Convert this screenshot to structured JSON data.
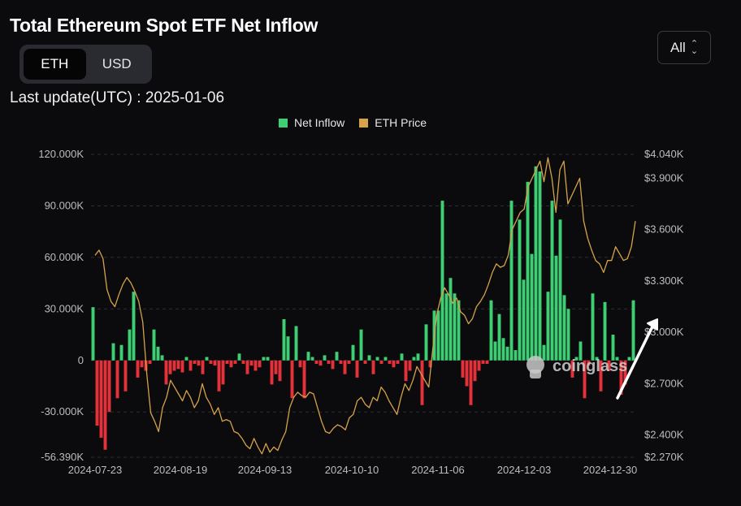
{
  "header": {
    "title": "Total Ethereum Spot ETF Net Inflow",
    "toggle": {
      "options": [
        "ETH",
        "USD"
      ],
      "selected": "ETH"
    },
    "range": {
      "value": "All",
      "icon": "chevron-updown-icon"
    },
    "last_update": "Last update(UTC) : 2025-01-06"
  },
  "watermark": {
    "text": "coinglass",
    "icon": "coinglass-logo-icon"
  },
  "colors": {
    "positive": "#3ecf74",
    "negative": "#e5323a",
    "price": "#d6a24a",
    "background": "#0b0b0d"
  },
  "chart_data": {
    "type": "bar",
    "legend": [
      {
        "name": "Net Inflow",
        "color": "#3ecf74"
      },
      {
        "name": "ETH Price",
        "color": "#d6a24a"
      }
    ],
    "legend_position": "top-center",
    "x_tick_labels": [
      "2024-07-23",
      "2024-08-19",
      "2024-09-13",
      "2024-10-10",
      "2024-11-06",
      "2024-12-03",
      "2024-12-30"
    ],
    "y_left": {
      "ticks": [
        {
          "v": 120000,
          "label": "120.000K"
        },
        {
          "v": 90000,
          "label": "90.000K"
        },
        {
          "v": 60000,
          "label": "60.000K"
        },
        {
          "v": 30000,
          "label": "30.000K"
        },
        {
          "v": 0,
          "label": "0"
        },
        {
          "v": -30000,
          "label": "-30.000K"
        },
        {
          "v": -56390,
          "label": "-56.390K"
        }
      ],
      "range": [
        -56390,
        120000
      ]
    },
    "y_right": {
      "ticks": [
        {
          "v": 4040,
          "label": "$4.040K"
        },
        {
          "v": 3900,
          "label": "$3.900K"
        },
        {
          "v": 3600,
          "label": "$3.600K"
        },
        {
          "v": 3300,
          "label": "$3.300K"
        },
        {
          "v": 3000,
          "label": "$3.000K"
        },
        {
          "v": 2700,
          "label": "$2.700K"
        },
        {
          "v": 2400,
          "label": "$2.400K"
        },
        {
          "v": 2270,
          "label": "$2.270K"
        }
      ],
      "range": [
        2270,
        4040
      ]
    },
    "series": [
      {
        "name": "Net Inflow",
        "type": "bar",
        "values": [
          31000,
          -38000,
          -45000,
          -52000,
          -30000,
          10000,
          -22000,
          9000,
          -18000,
          18000,
          40000,
          -10000,
          -4000,
          -6000,
          -2000,
          18000,
          8000,
          3000,
          -14000,
          -8000,
          -6000,
          -5000,
          -7000,
          2000,
          -6000,
          -2000,
          -3000,
          -8000,
          2000,
          -2000,
          -3000,
          -18000,
          -14000,
          -2000,
          -4000,
          -2000,
          4000,
          -2000,
          -8000,
          -3000,
          -6000,
          -4000,
          2000,
          2000,
          -14000,
          -8000,
          -12000,
          24000,
          14000,
          -22000,
          20000,
          -4000,
          -22000,
          5000,
          2000,
          -2000,
          -3000,
          3000,
          -2000,
          -5000,
          5000,
          -2000,
          -8000,
          -2000,
          9000,
          -10000,
          18000,
          -2000,
          3000,
          -8000,
          2000,
          -2000,
          2000,
          -2000,
          -4000,
          -2000,
          4000,
          -12000,
          -6000,
          2000,
          4000,
          -26000,
          21000,
          -4000,
          29000,
          29000,
          93000,
          39000,
          48000,
          39000,
          35000,
          -10000,
          -15000,
          -26000,
          -12000,
          -6000,
          -2000,
          -2000,
          35000,
          11000,
          27000,
          13000,
          8000,
          93000,
          6000,
          82000,
          47000,
          104000,
          62000,
          113000,
          110000,
          9000,
          40000,
          93000,
          61000,
          82000,
          38000,
          30000,
          -10000,
          2000,
          11000,
          -22000,
          -3000,
          39000,
          2000,
          -18000,
          34000,
          -6000,
          15000,
          2000,
          -20000,
          -14000,
          2000,
          35000
        ],
        "color_pos": "#3ecf74",
        "color_neg": "#e5323a"
      },
      {
        "name": "ETH Price",
        "type": "line",
        "axis": "right",
        "values": [
          3450,
          3480,
          3430,
          3250,
          3180,
          3150,
          3220,
          3280,
          3320,
          3290,
          3240,
          3180,
          3060,
          2760,
          2530,
          2480,
          2420,
          2560,
          2620,
          2720,
          2680,
          2640,
          2600,
          2660,
          2620,
          2560,
          2600,
          2700,
          2620,
          2580,
          2520,
          2560,
          2480,
          2490,
          2480,
          2420,
          2410,
          2380,
          2340,
          2320,
          2380,
          2330,
          2290,
          2350,
          2300,
          2330,
          2310,
          2370,
          2420,
          2560,
          2620,
          2650,
          2630,
          2620,
          2650,
          2640,
          2560,
          2480,
          2420,
          2410,
          2440,
          2460,
          2450,
          2430,
          2500,
          2520,
          2600,
          2620,
          2580,
          2560,
          2620,
          2600,
          2680,
          2650,
          2600,
          2560,
          2520,
          2620,
          2700,
          2660,
          2720,
          2800,
          2760,
          2720,
          2680,
          2900,
          3100,
          3200,
          3260,
          3220,
          3170,
          3200,
          3120,
          3100,
          3050,
          3080,
          3150,
          3180,
          3220,
          3280,
          3350,
          3400,
          3380,
          3390,
          3450,
          3600,
          3650,
          3700,
          3720,
          3850,
          3900,
          3950,
          4000,
          3880,
          4020,
          3900,
          3700,
          3950,
          4000,
          3750,
          3800,
          3850,
          3900,
          3650,
          3550,
          3480,
          3420,
          3400,
          3350,
          3420,
          3420,
          3500,
          3460,
          3420,
          3430,
          3500,
          3650
        ]
      }
    ]
  }
}
